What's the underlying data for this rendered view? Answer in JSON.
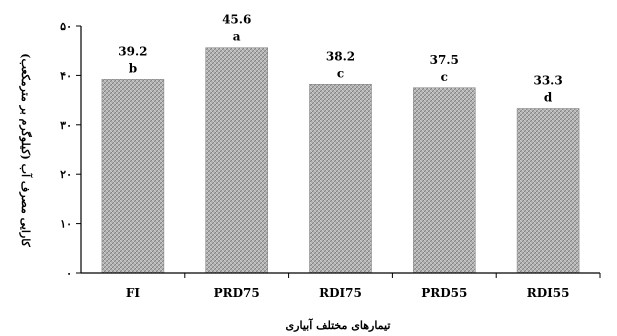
{
  "chart_data": {
    "type": "bar",
    "categories": [
      "FI",
      "PRD75",
      "RDI75",
      "PRD55",
      "RDI55"
    ],
    "values": [
      39.2,
      45.6,
      38.2,
      37.5,
      33.3
    ],
    "value_labels": [
      "39.2",
      "45.6",
      "38.2",
      "37.5",
      "33.3"
    ],
    "group_letters": [
      "b",
      "a",
      "c",
      "c",
      "d"
    ],
    "xlabel": "تیمارهای مختلف آبیاری",
    "ylabel": "کارایی مصرف آب (کیلوگرم بر مترمکعب)",
    "ylim": [
      0,
      50
    ],
    "yticks": [
      0,
      10,
      20,
      30,
      40,
      50
    ],
    "ytick_labels": [
      "۰",
      "۱۰",
      "۲۰",
      "۳۰",
      "۴۰",
      "۵۰"
    ],
    "grid": false,
    "colors": {
      "bar_fill": "#a8a8a8",
      "bar_stroke": "#8a8a8a",
      "axis": "#000000"
    }
  }
}
